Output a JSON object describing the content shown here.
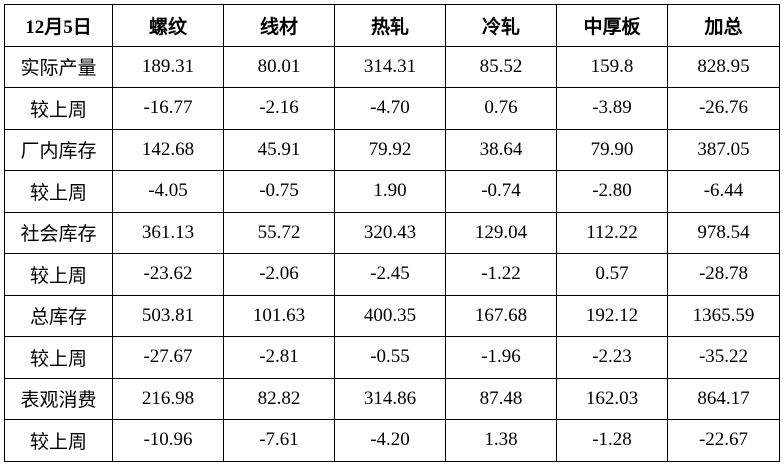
{
  "table": {
    "header": [
      "12月5日",
      "螺纹",
      "线材",
      "热轧",
      "冷轧",
      "中厚板",
      "加总"
    ],
    "rows": [
      [
        "实际产量",
        "189.31",
        "80.01",
        "314.31",
        "85.52",
        "159.8",
        "828.95"
      ],
      [
        "较上周",
        "-16.77",
        "-2.16",
        "-4.70",
        "0.76",
        "-3.89",
        "-26.76"
      ],
      [
        "厂内库存",
        "142.68",
        "45.91",
        "79.92",
        "38.64",
        "79.90",
        "387.05"
      ],
      [
        "较上周",
        "-4.05",
        "-0.75",
        "1.90",
        "-0.74",
        "-2.80",
        "-6.44"
      ],
      [
        "社会库存",
        "361.13",
        "55.72",
        "320.43",
        "129.04",
        "112.22",
        "978.54"
      ],
      [
        "较上周",
        "-23.62",
        "-2.06",
        "-2.45",
        "-1.22",
        "0.57",
        "-28.78"
      ],
      [
        "总库存",
        "503.81",
        "101.63",
        "400.35",
        "167.68",
        "192.12",
        "1365.59"
      ],
      [
        "较上周",
        "-27.67",
        "-2.81",
        "-0.55",
        "-1.96",
        "-2.23",
        "-35.22"
      ],
      [
        "表观消费",
        "216.98",
        "82.82",
        "314.86",
        "87.48",
        "162.03",
        "864.17"
      ],
      [
        "较上周",
        "-10.96",
        "-7.61",
        "-4.20",
        "1.38",
        "-1.28",
        "-22.67"
      ]
    ]
  }
}
